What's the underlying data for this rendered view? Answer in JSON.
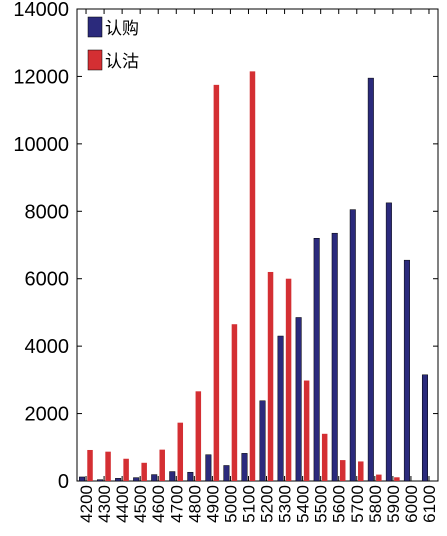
{
  "chart_data": {
    "type": "bar",
    "title": "",
    "xlabel": "",
    "ylabel": "",
    "ylim": [
      0,
      14000
    ],
    "yticks": [
      0,
      2000,
      4000,
      6000,
      8000,
      10000,
      12000,
      14000
    ],
    "legend_position": "top-left",
    "grid": false,
    "categories": [
      "4200",
      "4300",
      "4400",
      "4500",
      "4600",
      "4700",
      "4800",
      "4900",
      "5000",
      "5100",
      "5200",
      "5300",
      "5400",
      "5500",
      "5600",
      "5700",
      "5800",
      "5900",
      "6000",
      "6100"
    ],
    "series": [
      {
        "name": "认购",
        "color": "#2b2a7c",
        "values": [
          120,
          40,
          80,
          100,
          190,
          280,
          260,
          780,
          460,
          820,
          2380,
          4300,
          4850,
          7200,
          7350,
          8050,
          11950,
          8250,
          6550,
          3150
        ]
      },
      {
        "name": "认沽",
        "color": "#d42f33",
        "values": [
          920,
          870,
          660,
          540,
          930,
          1730,
          2660,
          11750,
          4650,
          12150,
          6200,
          6000,
          2980,
          1400,
          620,
          580,
          190,
          110,
          0,
          0
        ]
      }
    ]
  }
}
